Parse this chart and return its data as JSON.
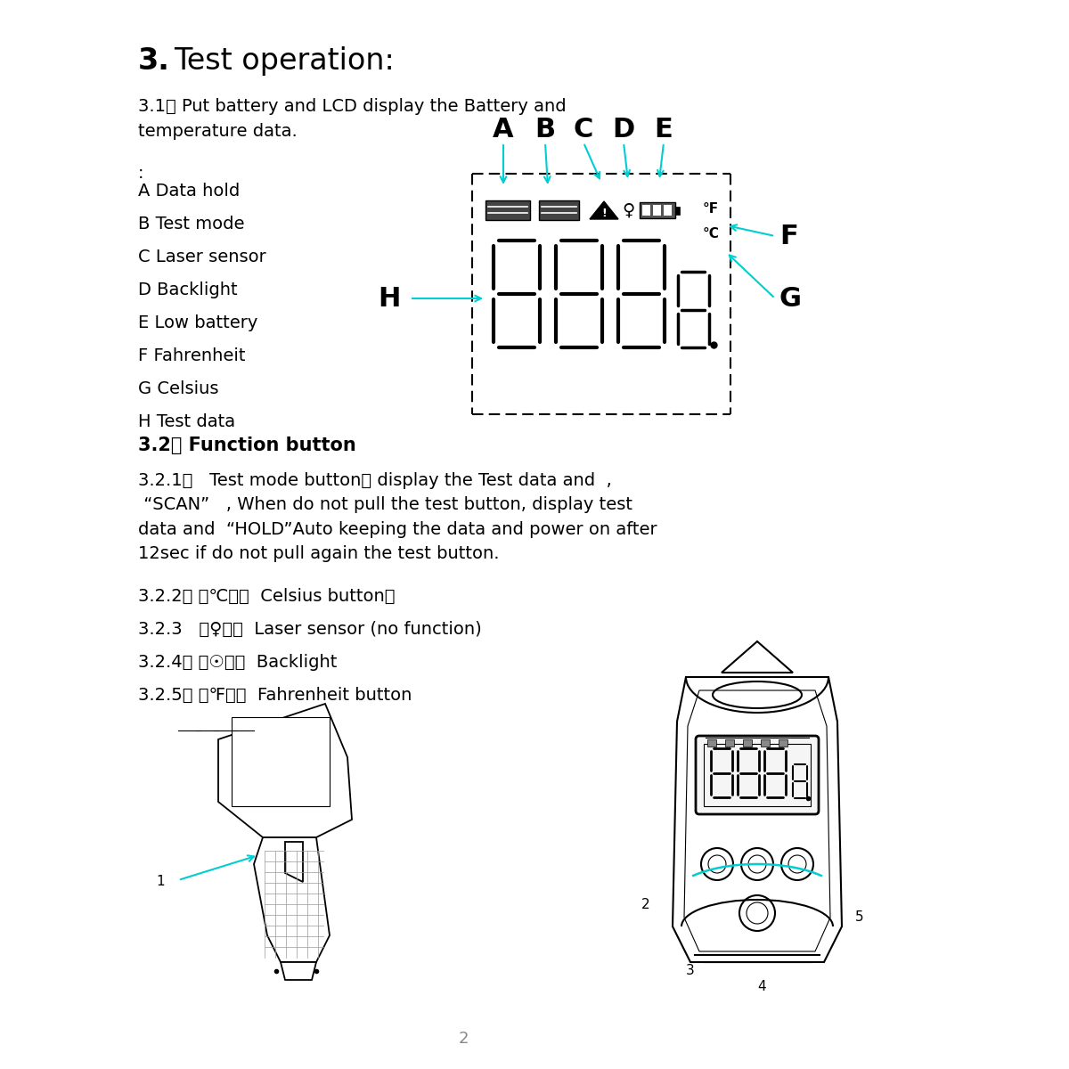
{
  "bg_color": "#ffffff",
  "black": "#000000",
  "cyan": "#00CED1",
  "gray": "#888888",
  "title_num": "3.",
  "title_text": " Test operation:",
  "title_fs": 24,
  "body_fs": 14,
  "bold_fs": 15,
  "section31": "3.1、 Put battery and LCD display the Battery and\ntemperature data.",
  "labels": [
    "A Data hold",
    "B Test mode",
    "C Laser sensor",
    "D Backlight",
    "E Low battery",
    "F Fahrenheit",
    "G Celsius",
    "H Test data"
  ],
  "s321": "3.2.1、   Test mode button： display the Test data and  ,\n “SCAN”   , When do not pull the test button, display test\ndata and  “HOLD”Auto keeping the data and power on after\n12sec if do not pull again the test button.",
  "s322": "3.2.2、 （℃）：  Celsius button。",
  "s323": "3.2.3   （♀）：  Laser sensor (no function)",
  "s324": "3.2.4、 （☉）：  Backlight",
  "s325": "3.2.5、 （℉）：  Fahrenheit button",
  "page_num": "2"
}
